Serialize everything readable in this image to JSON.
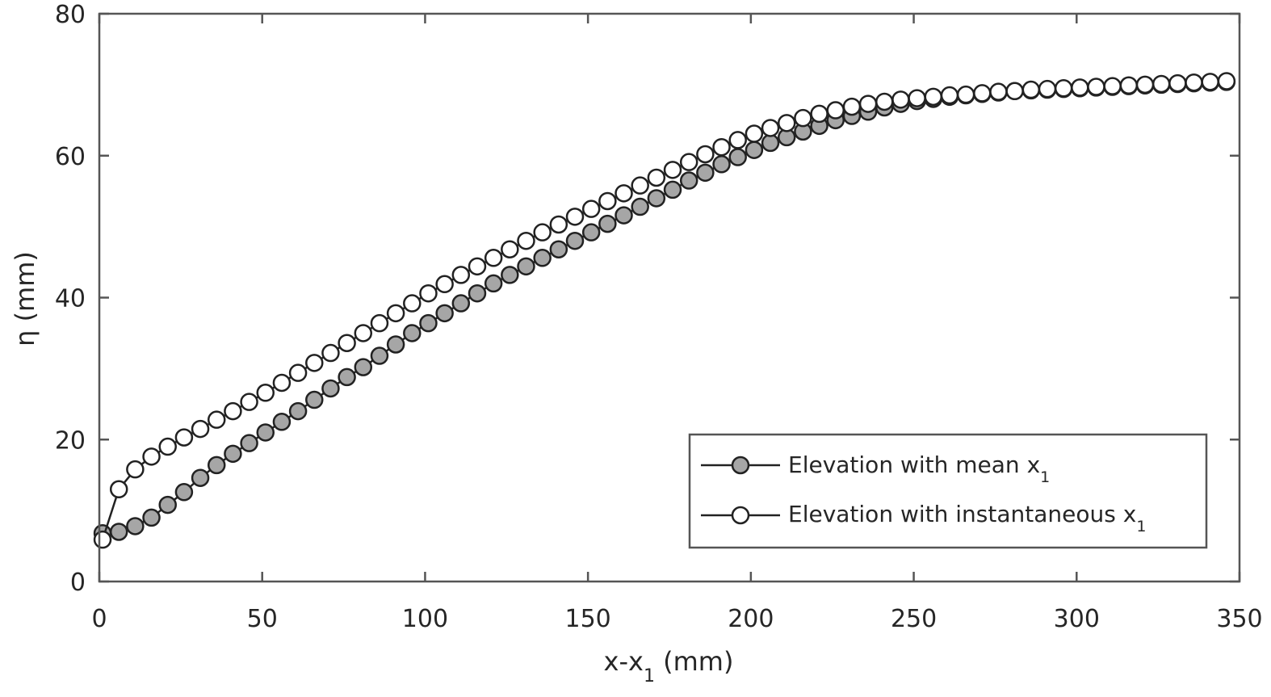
{
  "chart_data": {
    "type": "line",
    "title": "",
    "xlabel": {
      "main": "x-x",
      "sub": "1",
      "tail": " (mm)"
    },
    "ylabel": "η (mm)",
    "xlim": [
      0,
      350
    ],
    "ylim": [
      0,
      80
    ],
    "xticks": [
      0,
      50,
      100,
      150,
      200,
      250,
      300,
      350
    ],
    "yticks": [
      0,
      20,
      40,
      60,
      80
    ],
    "xtick_labels": [
      "0",
      "50",
      "100",
      "150",
      "200",
      "250",
      "300",
      "350"
    ],
    "ytick_labels": [
      "0",
      "20",
      "40",
      "60",
      "80"
    ],
    "grid": false,
    "legend_placement": "bottom-right",
    "x": [
      1,
      6,
      11,
      16,
      21,
      26,
      31,
      36,
      41,
      46,
      51,
      56,
      61,
      66,
      71,
      76,
      81,
      86,
      91,
      96,
      101,
      106,
      111,
      116,
      121,
      126,
      131,
      136,
      141,
      146,
      151,
      156,
      161,
      166,
      171,
      176,
      181,
      186,
      191,
      196,
      201,
      206,
      211,
      216,
      221,
      226,
      231,
      236,
      241,
      246,
      251,
      256,
      261,
      266,
      271,
      276,
      281,
      286,
      291,
      296,
      301,
      306,
      311,
      316,
      321,
      326,
      331,
      336,
      341,
      346
    ],
    "series": [
      {
        "name": "Elevation with mean x1",
        "label_main": "Elevation with mean x",
        "label_sub": "1",
        "marker": "filled-circle",
        "marker_color": "#a6a6a6",
        "values": [
          6.8,
          7.0,
          7.8,
          9.0,
          10.8,
          12.6,
          14.6,
          16.4,
          18.0,
          19.5,
          21.0,
          22.5,
          24.0,
          25.6,
          27.2,
          28.8,
          30.2,
          31.8,
          33.4,
          35.0,
          36.4,
          37.8,
          39.2,
          40.6,
          42.0,
          43.2,
          44.4,
          45.6,
          46.8,
          48.0,
          49.2,
          50.4,
          51.6,
          52.8,
          54.0,
          55.2,
          56.5,
          57.6,
          58.8,
          59.8,
          60.8,
          61.8,
          62.6,
          63.4,
          64.2,
          65.0,
          65.6,
          66.2,
          66.8,
          67.3,
          67.7,
          68.0,
          68.3,
          68.5,
          68.7,
          68.9,
          69.1,
          69.2,
          69.3,
          69.4,
          69.5,
          69.6,
          69.7,
          69.8,
          69.9,
          70.0,
          70.1,
          70.2,
          70.3,
          70.4
        ]
      },
      {
        "name": "Elevation with instantaneous x1",
        "label_main": "Elevation with instantaneous x",
        "label_sub": "1",
        "marker": "open-circle",
        "marker_color": "#ffffff",
        "values": [
          5.9,
          13.0,
          15.8,
          17.6,
          19.0,
          20.3,
          21.5,
          22.8,
          24.0,
          25.3,
          26.6,
          28.0,
          29.4,
          30.8,
          32.2,
          33.6,
          35.0,
          36.4,
          37.8,
          39.2,
          40.6,
          41.9,
          43.2,
          44.4,
          45.6,
          46.8,
          48.0,
          49.2,
          50.3,
          51.4,
          52.5,
          53.6,
          54.7,
          55.8,
          56.9,
          58.0,
          59.1,
          60.2,
          61.2,
          62.2,
          63.1,
          63.9,
          64.6,
          65.3,
          65.9,
          66.4,
          66.9,
          67.3,
          67.6,
          67.9,
          68.1,
          68.3,
          68.5,
          68.6,
          68.8,
          69.0,
          69.1,
          69.3,
          69.4,
          69.5,
          69.6,
          69.7,
          69.8,
          69.9,
          70.0,
          70.1,
          70.2,
          70.3,
          70.4,
          70.5
        ]
      }
    ]
  }
}
